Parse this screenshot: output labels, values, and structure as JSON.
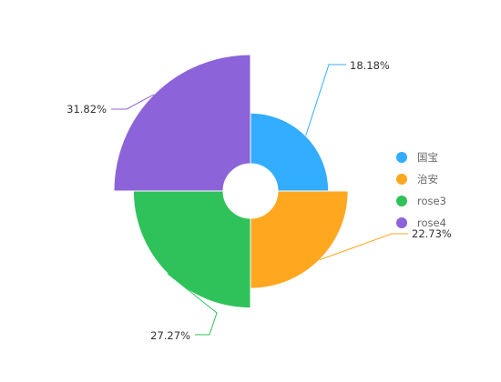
{
  "chart_data": {
    "type": "pie",
    "variant": "rose-donut",
    "title": "",
    "categories": [
      "国宝",
      "治安",
      "rose3",
      "rose4"
    ],
    "values": [
      4,
      5,
      6,
      7
    ],
    "percent_labels": [
      "18.18%",
      "22.73%",
      "27.27%",
      "31.82%"
    ],
    "colors": [
      "#33adff",
      "#ffa71f",
      "#2fc25b",
      "#8c63d9"
    ],
    "legend_position": "right",
    "legend": [
      "国宝",
      "治安",
      "rose3",
      "rose4"
    ]
  }
}
